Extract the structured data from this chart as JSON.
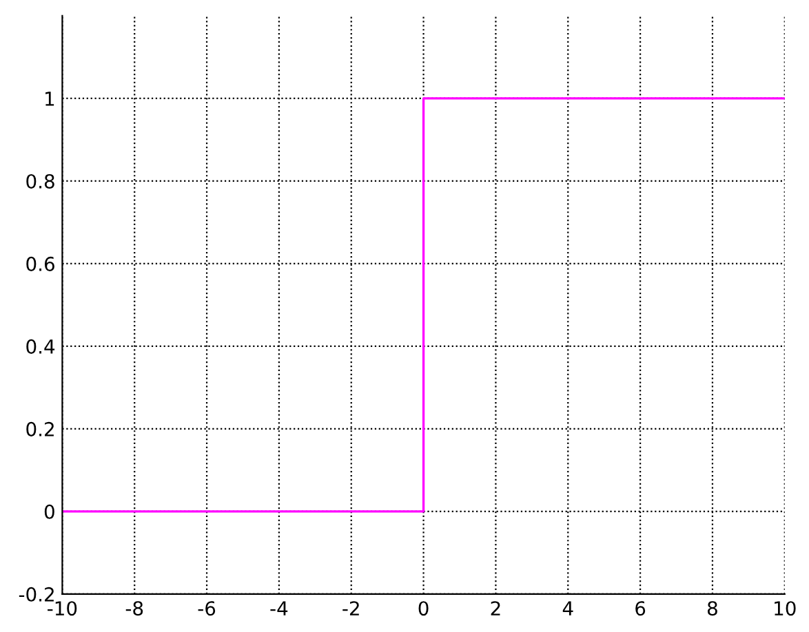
{
  "chart_data": {
    "type": "line",
    "series": [
      {
        "color": "#ff00ff",
        "x": [
          -10,
          0,
          0,
          10
        ],
        "values": [
          0,
          0,
          1,
          1
        ]
      }
    ],
    "xlim": [
      -10,
      10
    ],
    "xticks": [
      -10,
      -8,
      -6,
      -4,
      -2,
      0,
      2,
      4,
      6,
      8,
      10
    ],
    "ylim": [
      -0.2,
      1.2
    ],
    "yticks": [
      -0.2,
      0,
      0.2,
      0.4,
      0.6,
      0.8,
      1
    ],
    "grid": true,
    "line_style": "solid",
    "marker": "none"
  }
}
